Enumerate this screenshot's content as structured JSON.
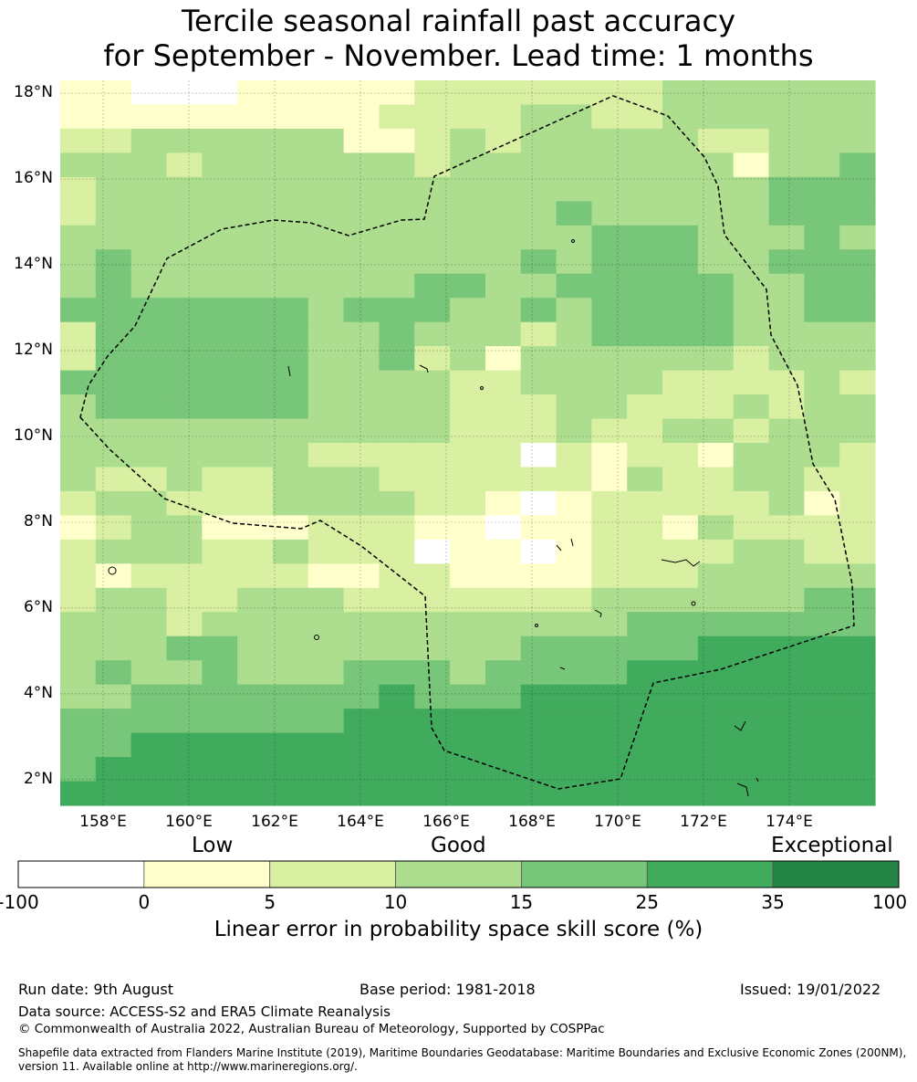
{
  "title": {
    "line1": "Tercile seasonal rainfall past accuracy",
    "line2": "for September - November. Lead time: 1 months"
  },
  "map": {
    "lat_ticks": [
      "18°N",
      "16°N",
      "14°N",
      "12°N",
      "10°N",
      "8°N",
      "6°N",
      "4°N",
      "2°N"
    ],
    "lon_ticks": [
      "158°E",
      "160°E",
      "162°E",
      "164°E",
      "166°E",
      "168°E",
      "170°E",
      "172°E",
      "174°E"
    ],
    "lon_range": [
      157.0,
      176.0
    ],
    "lat_range": [
      1.4,
      18.3
    ],
    "boundary_style": "dashed",
    "cell_size_deg": 0.55,
    "grid": [
      "11000111112222222333333",
      "11111111122223322333333",
      "22333333112323333322333",
      "33323333332333333331334",
      "23333333333333333333444",
      "23333333333333433333444",
      "33333333333333344433343",
      "34333333333334344433444",
      "34333333334433444443344",
      "44444443444334344443344",
      "24444443343332344443333",
      "24444443342313333332333",
      "44444443333223333222232",
      "34444443333222332223233",
      "33333333333222322332333",
      "33333332222220212213332",
      "32232233322222213223322",
      "23322233332210122222312",
      "12331112221101122132222",
      "23332232220110122223322",
      "21222221122111122233333",
      "23322333222222233333344",
      "33323333333333334444444",
      "33344333333334444455555",
      "34334333444344445555555",
      "33444444454445555555555",
      "44444444555555555555555",
      "44555555555555555555555",
      "45555555555555555555555",
      "55555555555555555555555"
    ]
  },
  "colorbar": {
    "colors": [
      "#ffffff",
      "#ffffcc",
      "#d9f0a3",
      "#addd8e",
      "#78c679",
      "#41ab5d",
      "#238443"
    ],
    "ticks": [
      "-100",
      "0",
      "5",
      "10",
      "15",
      "25",
      "35",
      "100"
    ],
    "categories": [
      "Low",
      "Good",
      "Exceptional"
    ],
    "label": "Linear error in probability space skill score (%)"
  },
  "footer": {
    "run_date": "Run date: 9th August",
    "base_period": "Base period: 1981-2018",
    "issued": "Issued: 19/01/2022",
    "data_source": "Data source: ACCESS-S2 and ERA5 Climate Reanalysis",
    "copyright": "© Commonwealth of Australia 2022, Australian Bureau of Meteorology, Supported by COSPPac",
    "shapefile": "Shapefile data extracted from Flanders Marine Institute (2019), Maritime Boundaries Geodatabase: Maritime Boundaries and Exclusive Economic Zones (200NM), version 11. Available online at http://www.marineregions.org/."
  }
}
